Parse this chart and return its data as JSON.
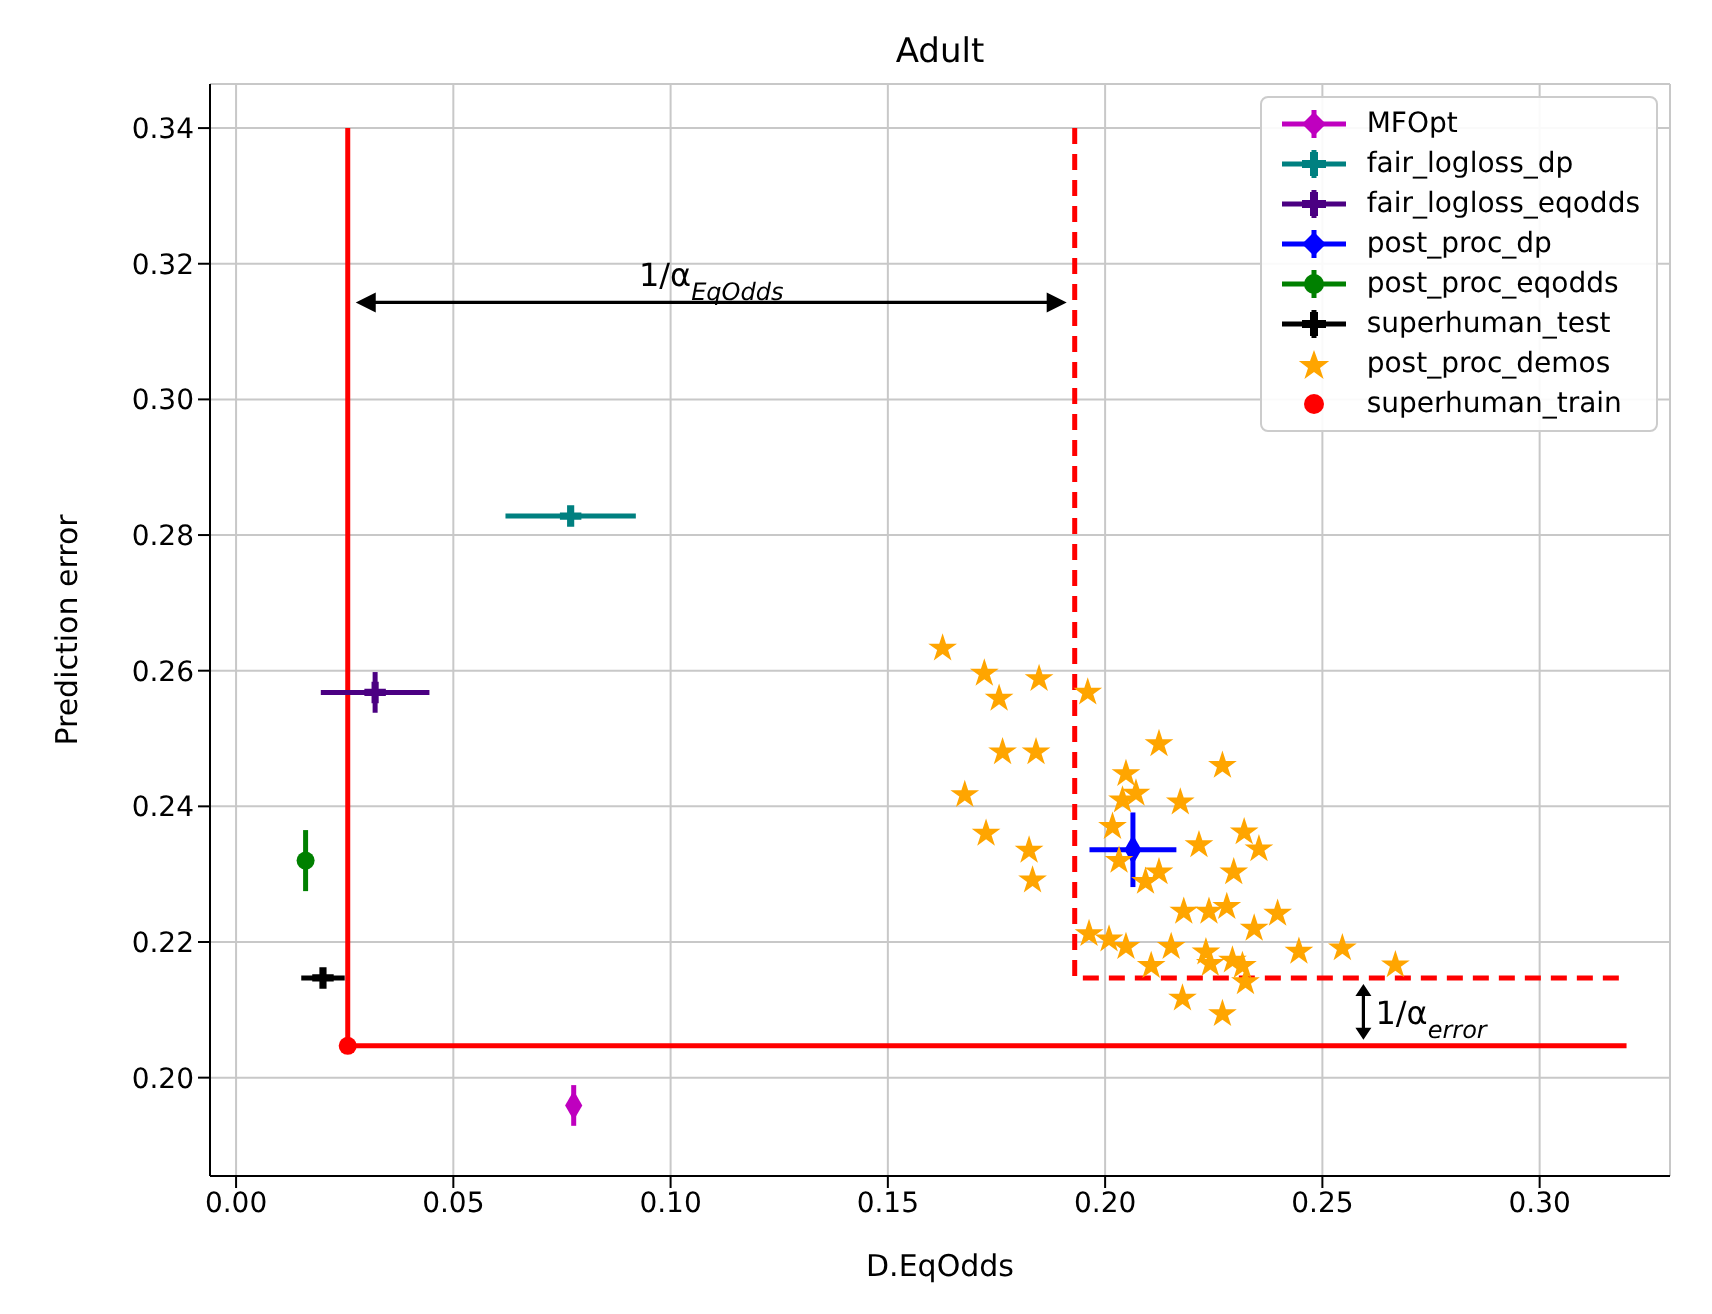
{
  "chart_data": {
    "type": "scatter",
    "title": "Adult",
    "xlabel": "D.EqOdds",
    "ylabel": "Prediction error",
    "xlim": [
      -0.006,
      0.33
    ],
    "ylim": [
      0.1855,
      0.3465
    ],
    "xticks": [
      {
        "value": 0,
        "label": "0.00"
      },
      {
        "value": 0.05,
        "label": "0.05"
      },
      {
        "value": 0.1,
        "label": "0.10"
      },
      {
        "value": 0.15,
        "label": "0.15"
      },
      {
        "value": 0.2,
        "label": "0.20"
      },
      {
        "value": 0.25,
        "label": "0.25"
      },
      {
        "value": 0.3,
        "label": "0.30"
      }
    ],
    "yticks": [
      {
        "value": 0.2,
        "label": "0.20"
      },
      {
        "value": 0.22,
        "label": "0.22"
      },
      {
        "value": 0.24,
        "label": "0.24"
      },
      {
        "value": 0.26,
        "label": "0.26"
      },
      {
        "value": 0.28,
        "label": "0.28"
      },
      {
        "value": 0.3,
        "label": "0.30"
      },
      {
        "value": 0.32,
        "label": "0.32"
      },
      {
        "value": 0.34,
        "label": "0.34"
      }
    ],
    "grid": true,
    "legend": "top right",
    "series": [
      {
        "type": "line",
        "color": "#ff0000",
        "line_style": "solid",
        "marker": "none",
        "x": [
          0.0257,
          0.0257,
          0.32
        ],
        "values": [
          0.34,
          0.2047,
          0.2047
        ]
      },
      {
        "type": "line",
        "color": "#ff0000",
        "line_style": "dashed",
        "marker": "none",
        "x": [
          0.193,
          0.193,
          0.32
        ],
        "values": [
          0.34,
          0.2147,
          0.2147
        ]
      },
      {
        "name": "MFOpt",
        "color": "#bf00bf",
        "marker": "diamond",
        "x": [
          0.0777
        ],
        "values": [
          0.1959
        ],
        "errors": [
          0.003
        ],
        "xerrors": [
          0.001
        ]
      },
      {
        "name": "fair_logloss_dp",
        "color": "#008080",
        "marker": "cross",
        "x": [
          0.077
        ],
        "values": [
          0.2828
        ],
        "errors": [
          0.0012
        ],
        "xerrors": [
          0.015
        ]
      },
      {
        "name": "fair_logloss_eqodds",
        "color": "#4b0082",
        "marker": "cross",
        "x": [
          0.032
        ],
        "values": [
          0.2568
        ],
        "errors": [
          0.003
        ],
        "xerrors": [
          0.0125
        ]
      },
      {
        "name": "post_proc_dp",
        "color": "#0000ff",
        "marker": "diamond",
        "x": [
          0.2064
        ],
        "values": [
          0.2336
        ],
        "errors": [
          0.0055
        ],
        "xerrors": [
          0.01
        ]
      },
      {
        "name": "post_proc_eqodds",
        "color": "#008000",
        "marker": "circle",
        "x": [
          0.016
        ],
        "values": [
          0.232
        ],
        "errors": [
          0.0045
        ],
        "xerrors": [
          0.001
        ]
      },
      {
        "name": "superhuman_test",
        "color": "#000000",
        "marker": "cross",
        "x": [
          0.02
        ],
        "values": [
          0.2147
        ],
        "errors": [
          0.0012
        ],
        "xerrors": [
          0.005
        ]
      },
      {
        "name": "post_proc_demos",
        "color": "#ffa500",
        "marker": "star",
        "x": [
          0.1626,
          0.1722,
          0.1848,
          0.1756,
          0.196,
          0.1764,
          0.1841,
          0.2124,
          0.227,
          0.2048,
          0.1677,
          0.2071,
          0.204,
          0.2173,
          0.1726,
          0.1825,
          0.1833,
          0.2017,
          0.2216,
          0.232,
          0.2354,
          0.2124,
          0.2093,
          0.2296,
          0.2032,
          0.2181,
          0.2239,
          0.228,
          0.2397,
          0.2343,
          0.1963,
          0.2009,
          0.2048,
          0.2152,
          0.2232,
          0.2293,
          0.2316,
          0.2446,
          0.2546,
          0.2668,
          0.2106,
          0.2242,
          0.2323,
          0.2178,
          0.227
        ],
        "values": [
          0.2633,
          0.2596,
          0.2588,
          0.2559,
          0.2568,
          0.248,
          0.248,
          0.2492,
          0.246,
          0.2448,
          0.2417,
          0.2419,
          0.2409,
          0.2406,
          0.236,
          0.2335,
          0.2291,
          0.237,
          0.2343,
          0.2362,
          0.2337,
          0.2303,
          0.2289,
          0.2303,
          0.232,
          0.2245,
          0.2245,
          0.2252,
          0.2242,
          0.222,
          0.2212,
          0.2204,
          0.2193,
          0.2193,
          0.2185,
          0.2173,
          0.2165,
          0.2186,
          0.2191,
          0.2166,
          0.2165,
          0.2168,
          0.2141,
          0.2117,
          0.2094
        ]
      },
      {
        "name": "superhuman_train",
        "color": "#ff0000",
        "marker": "circle",
        "x": [
          0.0257
        ],
        "values": [
          0.2047
        ]
      }
    ],
    "annotations": [
      "1/α$_{EqOdds}$",
      "1/α$_{error}$"
    ]
  }
}
